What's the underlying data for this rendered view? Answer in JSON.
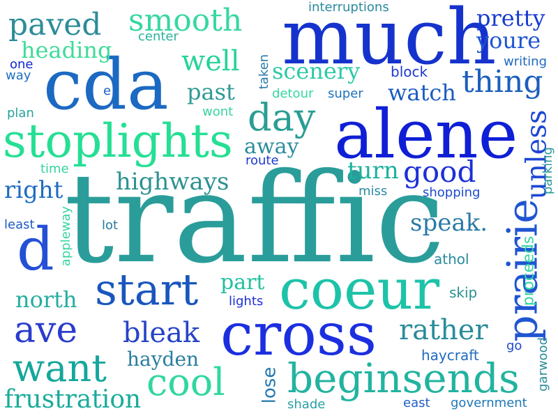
{
  "words": [
    {
      "text": "traffic",
      "color": "#2a9d9a"
    },
    {
      "text": "much",
      "color": "#1533cc"
    },
    {
      "text": "cda",
      "color": "#1c69c2"
    },
    {
      "text": "alene",
      "color": "#0f1fd6"
    },
    {
      "text": "coeur",
      "color": "#1dc3a8"
    },
    {
      "text": "cross",
      "color": "#1c2fe0"
    },
    {
      "text": "stoplights",
      "color": "#25df94"
    },
    {
      "text": "beginsends",
      "color": "#22b3a0"
    },
    {
      "text": "prairie",
      "color": "#1f55d2"
    },
    {
      "text": "start",
      "color": "#1a56bd"
    },
    {
      "text": "want",
      "color": "#15a79b"
    },
    {
      "text": "cool",
      "color": "#30d7a1"
    },
    {
      "text": "d",
      "color": "#2450d6"
    },
    {
      "text": "smooth",
      "color": "#36d8a0"
    },
    {
      "text": "day",
      "color": "#2a9e94"
    },
    {
      "text": "paved",
      "color": "#2c8c99"
    },
    {
      "text": "thing",
      "color": "#1c5fbc"
    },
    {
      "text": "good",
      "color": "#1c30d8"
    },
    {
      "text": "ave",
      "color": "#2a3ccc"
    },
    {
      "text": "rather",
      "color": "#2a8c9a"
    },
    {
      "text": "frustration",
      "color": "#1aab9b"
    },
    {
      "text": "well",
      "color": "#26d39a"
    },
    {
      "text": "bleak",
      "color": "#2643c7"
    },
    {
      "text": "speak.",
      "color": "#2a7aa8"
    },
    {
      "text": "highways",
      "color": "#2c9290"
    },
    {
      "text": "pretty",
      "color": "#173bd1"
    },
    {
      "text": "youre",
      "color": "#1f55d2"
    },
    {
      "text": "heading",
      "color": "#3fdc98"
    },
    {
      "text": "scenery",
      "color": "#2cc9a7"
    },
    {
      "text": "watch",
      "color": "#1c5cc2"
    },
    {
      "text": "past",
      "color": "#2f9a94"
    },
    {
      "text": "turn",
      "color": "#1db19e"
    },
    {
      "text": "right",
      "color": "#1f6cc0"
    },
    {
      "text": "north",
      "color": "#27ad9e"
    },
    {
      "text": "hayden",
      "color": "#297e9e"
    },
    {
      "text": "part",
      "color": "#23c0a1"
    },
    {
      "text": "away",
      "color": "#2c8c9c"
    },
    {
      "text": "unless",
      "color": "#1d47d3"
    },
    {
      "text": "proceeds",
      "color": "#34d69f"
    },
    {
      "text": "interruptions",
      "color": "#2a8a9e"
    },
    {
      "text": "center",
      "color": "#27b39c"
    },
    {
      "text": "one",
      "color": "#1226d3"
    },
    {
      "text": "way",
      "color": "#1d6fc4"
    },
    {
      "text": "e",
      "color": "#1c61c0"
    },
    {
      "text": "plan",
      "color": "#27a49c"
    },
    {
      "text": "wont",
      "color": "#36d59f"
    },
    {
      "text": "taken",
      "color": "#2a7aa8"
    },
    {
      "text": "block",
      "color": "#1c3ad0"
    },
    {
      "text": "writing",
      "color": "#1f6ac0"
    },
    {
      "text": "detour",
      "color": "#36d69f"
    },
    {
      "text": "super",
      "color": "#1e72bb"
    },
    {
      "text": "route",
      "color": "#1d3bd0"
    },
    {
      "text": "time",
      "color": "#36d29f"
    },
    {
      "text": "miss",
      "color": "#2a8aa2"
    },
    {
      "text": "shopping",
      "color": "#1d4ad0"
    },
    {
      "text": "parking",
      "color": "#2a9a96"
    },
    {
      "text": "least",
      "color": "#1d5bc6"
    },
    {
      "text": "lot",
      "color": "#297a9e"
    },
    {
      "text": "appleway",
      "color": "#36d69f"
    },
    {
      "text": "athol",
      "color": "#2a8a9e"
    },
    {
      "text": "lights",
      "color": "#1c2fd6"
    },
    {
      "text": "skip",
      "color": "#2a9090"
    },
    {
      "text": "go",
      "color": "#1c49c9"
    },
    {
      "text": "haycraft",
      "color": "#1e6bbf"
    },
    {
      "text": "garwood",
      "color": "#2a8c9a"
    },
    {
      "text": "lose",
      "color": "#2479b0"
    },
    {
      "text": "shade",
      "color": "#2aa0a6"
    },
    {
      "text": "east",
      "color": "#1f5cc8"
    },
    {
      "text": "government",
      "color": "#1f77b6"
    }
  ]
}
